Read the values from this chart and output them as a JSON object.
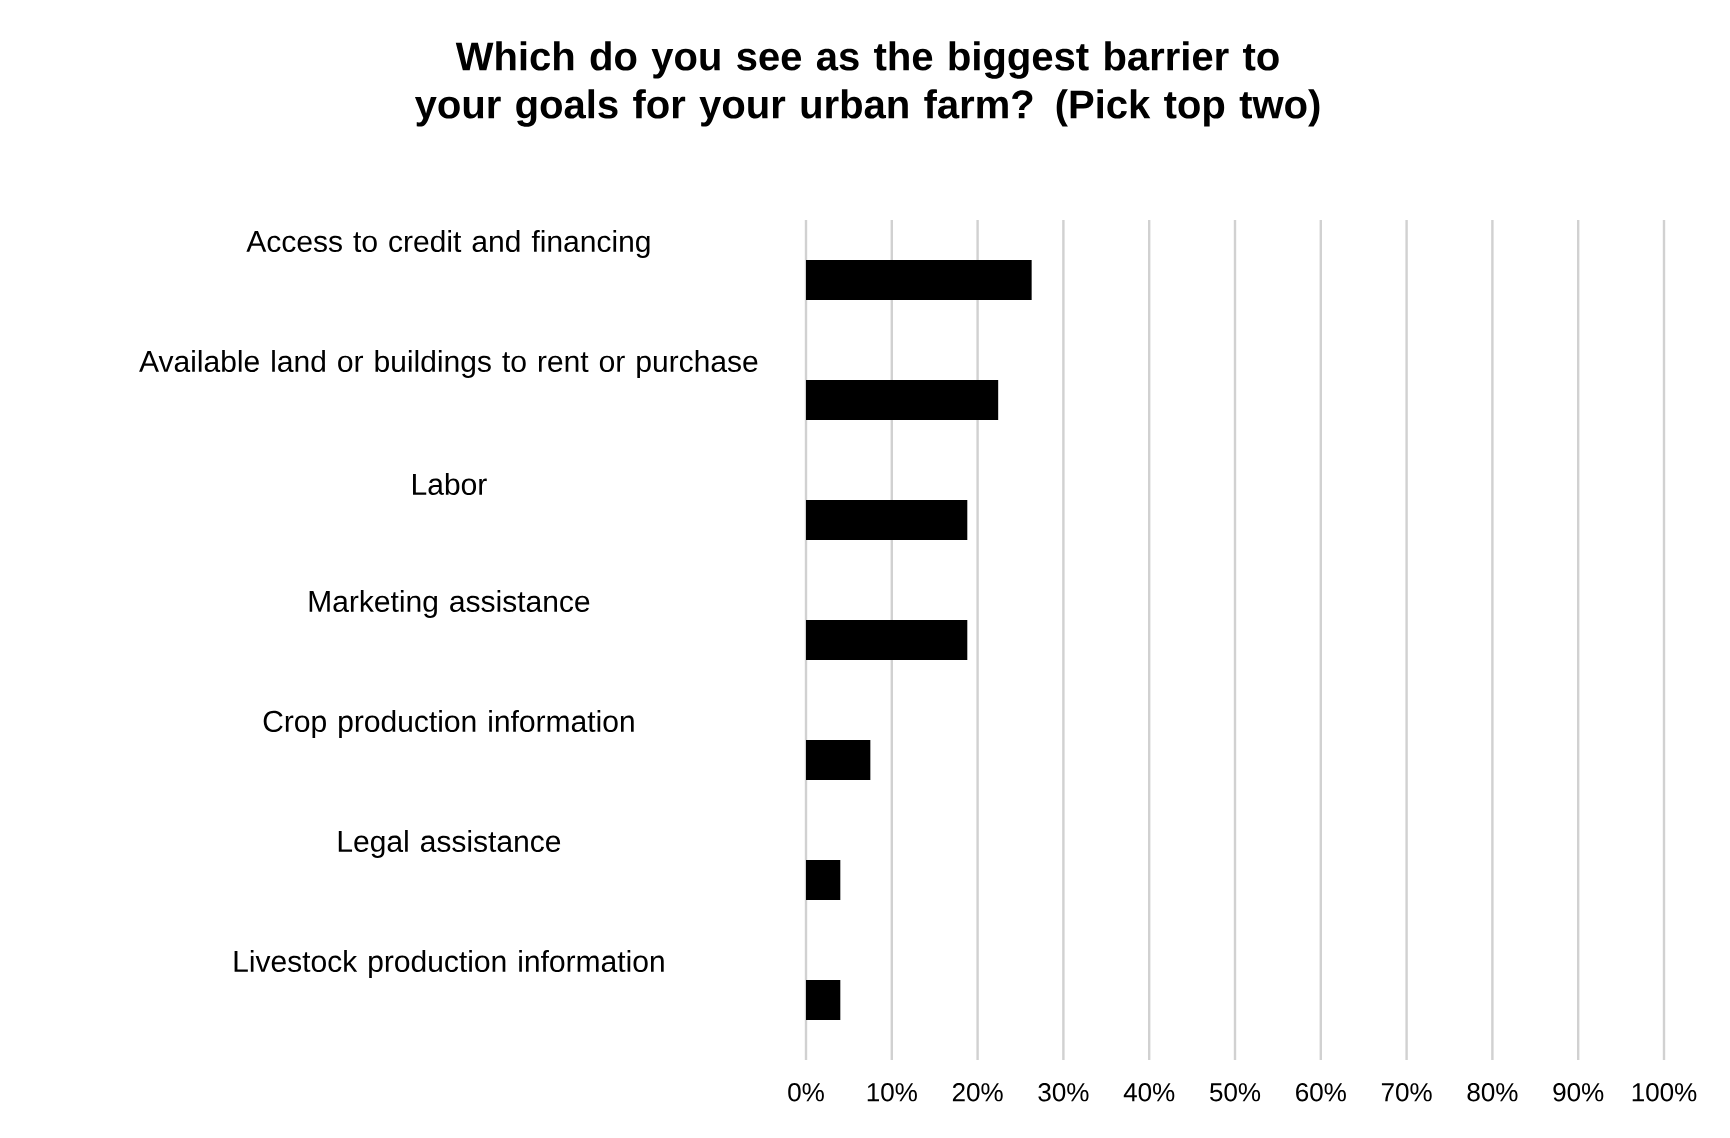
{
  "chart_data": {
    "type": "bar",
    "orientation": "horizontal",
    "title": "Which do you see as the biggest barrier to your goals for your urban farm? (Pick top two)",
    "categories": [
      "Access to credit and financing",
      "Available land or buildings to rent or purchase",
      "Labor",
      "Marketing assistance",
      "Crop production information",
      "Legal assistance",
      "Livestock production information"
    ],
    "values": [
      26.3,
      22.4,
      18.8,
      18.8,
      7.5,
      4,
      4
    ],
    "color": "#000000",
    "xlim": [
      0,
      100
    ],
    "xticks": [
      {
        "value": 0,
        "label": "0%"
      },
      {
        "value": 10,
        "label": "10%"
      },
      {
        "value": 20,
        "label": "20%"
      },
      {
        "value": 30,
        "label": "30%"
      },
      {
        "value": 40,
        "label": "40%"
      },
      {
        "value": 50,
        "label": "50%"
      },
      {
        "value": 60,
        "label": "60%"
      },
      {
        "value": 70,
        "label": "70%"
      },
      {
        "value": 80,
        "label": "80%"
      },
      {
        "value": 90,
        "label": "90%"
      },
      {
        "value": 100,
        "label": "100%"
      }
    ],
    "grid": "x"
  }
}
